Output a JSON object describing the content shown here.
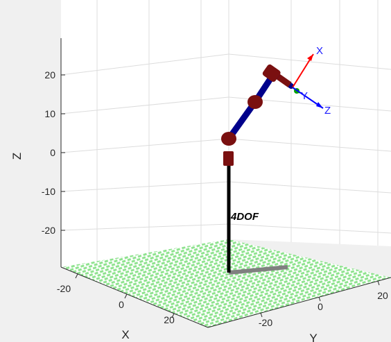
{
  "chart_data": {
    "type": "3d-line",
    "xlabel": "X",
    "ylabel": "Y",
    "zlabel": "Z",
    "xticks": [
      "-20",
      "0",
      "20"
    ],
    "yticks": [
      "-20",
      "0",
      "20"
    ],
    "zticks": [
      "20",
      "10",
      "0",
      "-10",
      "-20"
    ],
    "xlim": [
      -30,
      30
    ],
    "ylim": [
      -30,
      30
    ],
    "zlim": [
      -30,
      30
    ],
    "grid": true,
    "robot_name": "4DOF",
    "tool_frame": {
      "x_label": "X",
      "y_label": "Y",
      "z_label": "Z"
    },
    "colors": {
      "background": "#f0f0f0",
      "axes_face": "#ffffff",
      "grid": "#dcdcdc",
      "floor_a": "#8fe38f",
      "floor_b": "#ffffff",
      "link": "#00008b",
      "joint": "#7a1010",
      "base_pole": "#000000",
      "shadow": "#808080",
      "frame_x": "#ff0000",
      "frame_y": "#00a000",
      "frame_z": "#0000ff",
      "frame_label": "#1a1aff"
    }
  }
}
